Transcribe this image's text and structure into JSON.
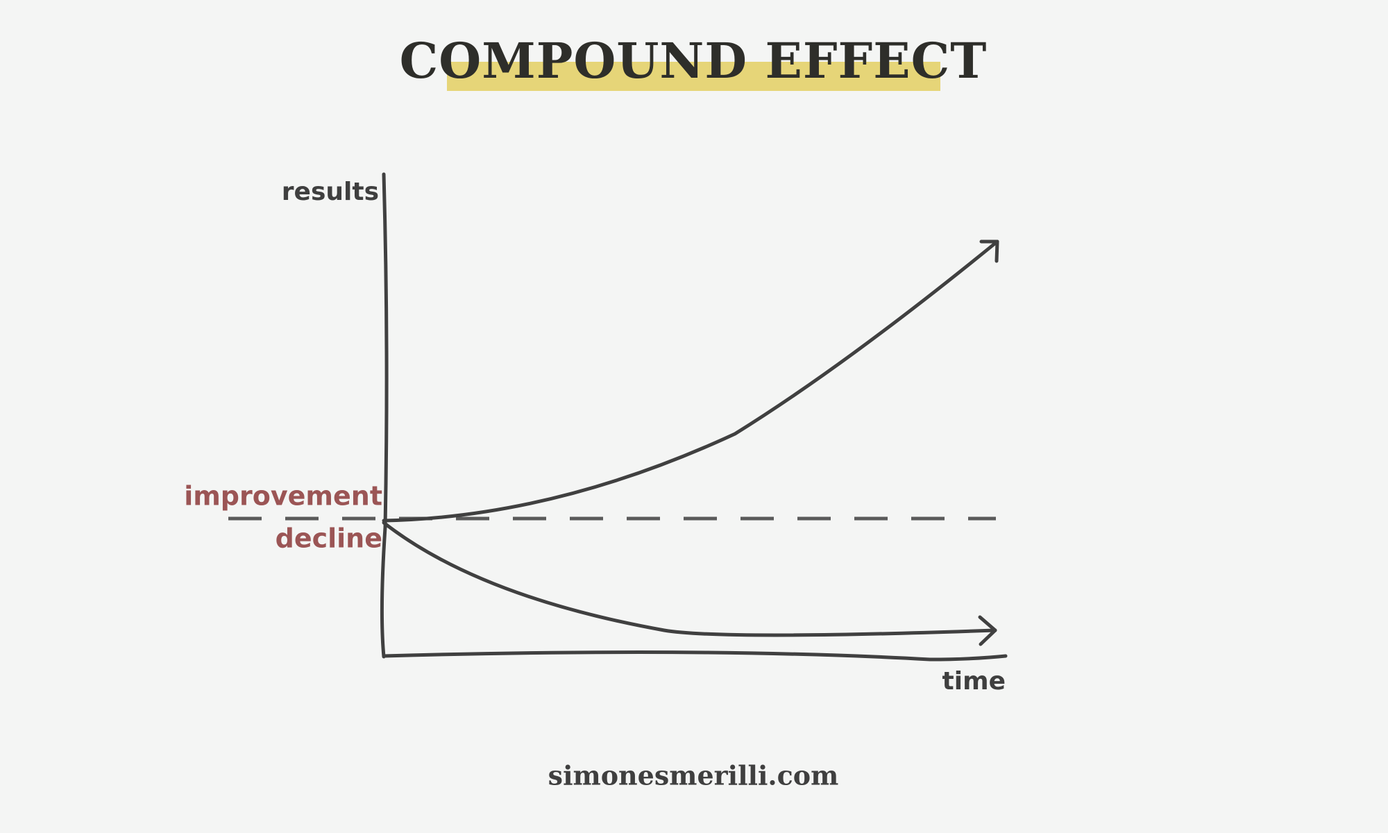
{
  "header": {
    "title": "COMPOUND EFFECT"
  },
  "diagram": {
    "y_axis_label": "results",
    "x_axis_label": "time",
    "upper_label": "improvement",
    "lower_label": "decline"
  },
  "footer": {
    "text": "simonesmerilli.com"
  }
}
